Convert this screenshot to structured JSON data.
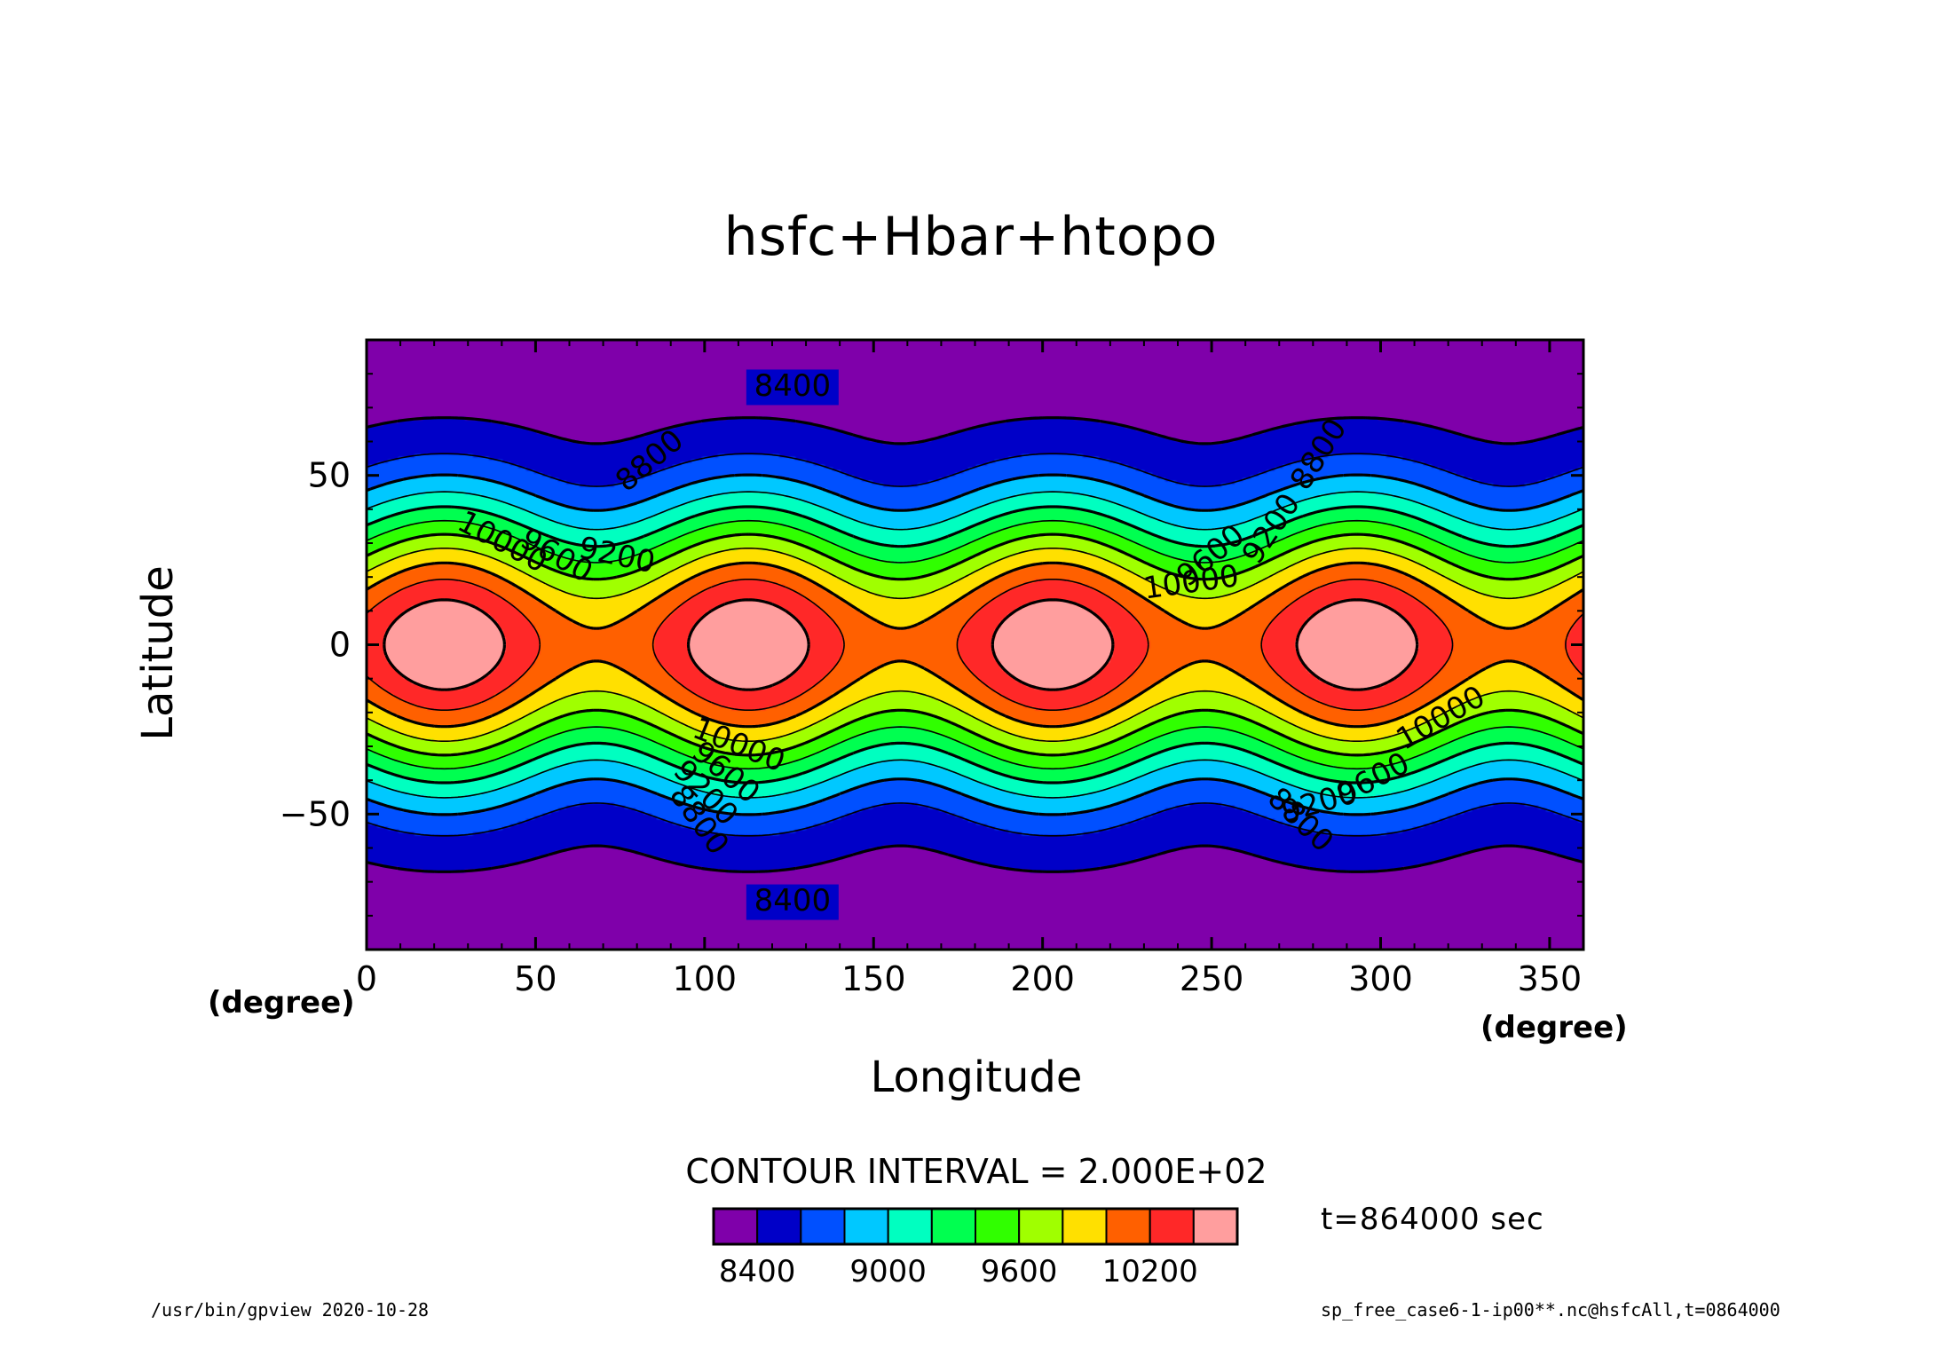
{
  "chart_data": {
    "type": "contour",
    "title": "hsfc+Hbar+htopo",
    "xlabel": "Longitude",
    "ylabel": "Latitude",
    "x_unit": "(degree)",
    "y_unit": "(degree)",
    "xlim": [
      0,
      360
    ],
    "ylim": [
      -90,
      90
    ],
    "x_ticks": [
      0,
      50,
      100,
      150,
      200,
      250,
      300,
      350
    ],
    "y_ticks": [
      -50,
      0,
      50
    ],
    "contour_interval_label": "CONTOUR INTERVAL = 2.000E+02",
    "contour_interval": 200,
    "levels": [
      8400,
      8600,
      8800,
      9000,
      9200,
      9400,
      9600,
      9800,
      10000,
      10200,
      10400
    ],
    "colors": [
      "#7f00aa",
      "#0000c8",
      "#0050ff",
      "#00c8ff",
      "#00ffc0",
      "#00ff50",
      "#30ff00",
      "#a0ff00",
      "#ffe000",
      "#ff6000",
      "#ff2828",
      "#ff9e9e"
    ],
    "wave_number": 4,
    "colorbar_labels": [
      "8400",
      "9000",
      "9600",
      "10200"
    ],
    "colorbar_label_values": [
      8400,
      9000,
      9600,
      10200
    ],
    "contour_labels": [
      "8400",
      "8400",
      "8800",
      "9200",
      "9600",
      "10000",
      "8800",
      "9200",
      "9600",
      "10000",
      "10000",
      "9600",
      "9200",
      "8800",
      "10000",
      "9600",
      "9200",
      "8800"
    ]
  },
  "annotations": {
    "time": "t=864000 sec",
    "footer_left": "/usr/bin/gpview   2020-10-28",
    "footer_right": "sp_free_case6-1-ip00**.nc@hsfcAll,t=0864000"
  }
}
